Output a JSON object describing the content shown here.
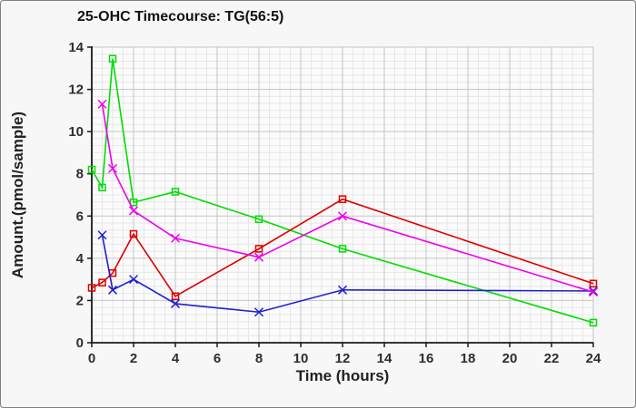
{
  "window": {
    "background": "#f7f7f7",
    "border_color": "#7f7f7f"
  },
  "chart_data": {
    "type": "line",
    "title": "25-OHC Timecourse: TG(56:5)",
    "xlabel": "Time (hours)",
    "ylabel": "Amount.(pmol/sample)",
    "xlim": [
      0,
      24
    ],
    "ylim": [
      0,
      14
    ],
    "x_tick_step": 2,
    "y_tick_step": 2,
    "x_minor_divisions_per_major": 4,
    "y_minor_divisions_per_major": 6,
    "grid": {
      "major": true,
      "minor": true,
      "major_color": "#c5c5c5",
      "minor_color": "#e7e7e7",
      "plot_background": "#fbfbfb",
      "axis_color": "#1a1a1a",
      "tick_label_color": "#2e2e2e"
    },
    "legend": {
      "visible": false
    },
    "series": [
      {
        "name": "green-squares",
        "color": "#00dd00",
        "marker": "square",
        "x": [
          0,
          0.5,
          1,
          2,
          4,
          8,
          12,
          24
        ],
        "y": [
          8.2,
          7.35,
          13.45,
          6.65,
          7.15,
          5.85,
          4.45,
          0.95
        ]
      },
      {
        "name": "red-squares",
        "color": "#dd0000",
        "marker": "square",
        "x": [
          0,
          0.5,
          1,
          2,
          4,
          8,
          12,
          24
        ],
        "y": [
          2.6,
          2.85,
          3.3,
          5.15,
          2.2,
          4.45,
          6.8,
          2.8
        ]
      },
      {
        "name": "blue-x",
        "color": "#2020cc",
        "marker": "x",
        "x": [
          0.5,
          1,
          2,
          4,
          8,
          12,
          24
        ],
        "y": [
          5.1,
          2.5,
          3.0,
          1.85,
          1.45,
          2.5,
          2.45
        ]
      },
      {
        "name": "magenta-x",
        "color": "#ee00ee",
        "marker": "x",
        "x": [
          0.5,
          1,
          2,
          4,
          8,
          12,
          24
        ],
        "y": [
          11.3,
          8.25,
          6.25,
          4.95,
          4.05,
          6.0,
          2.4
        ]
      }
    ]
  }
}
